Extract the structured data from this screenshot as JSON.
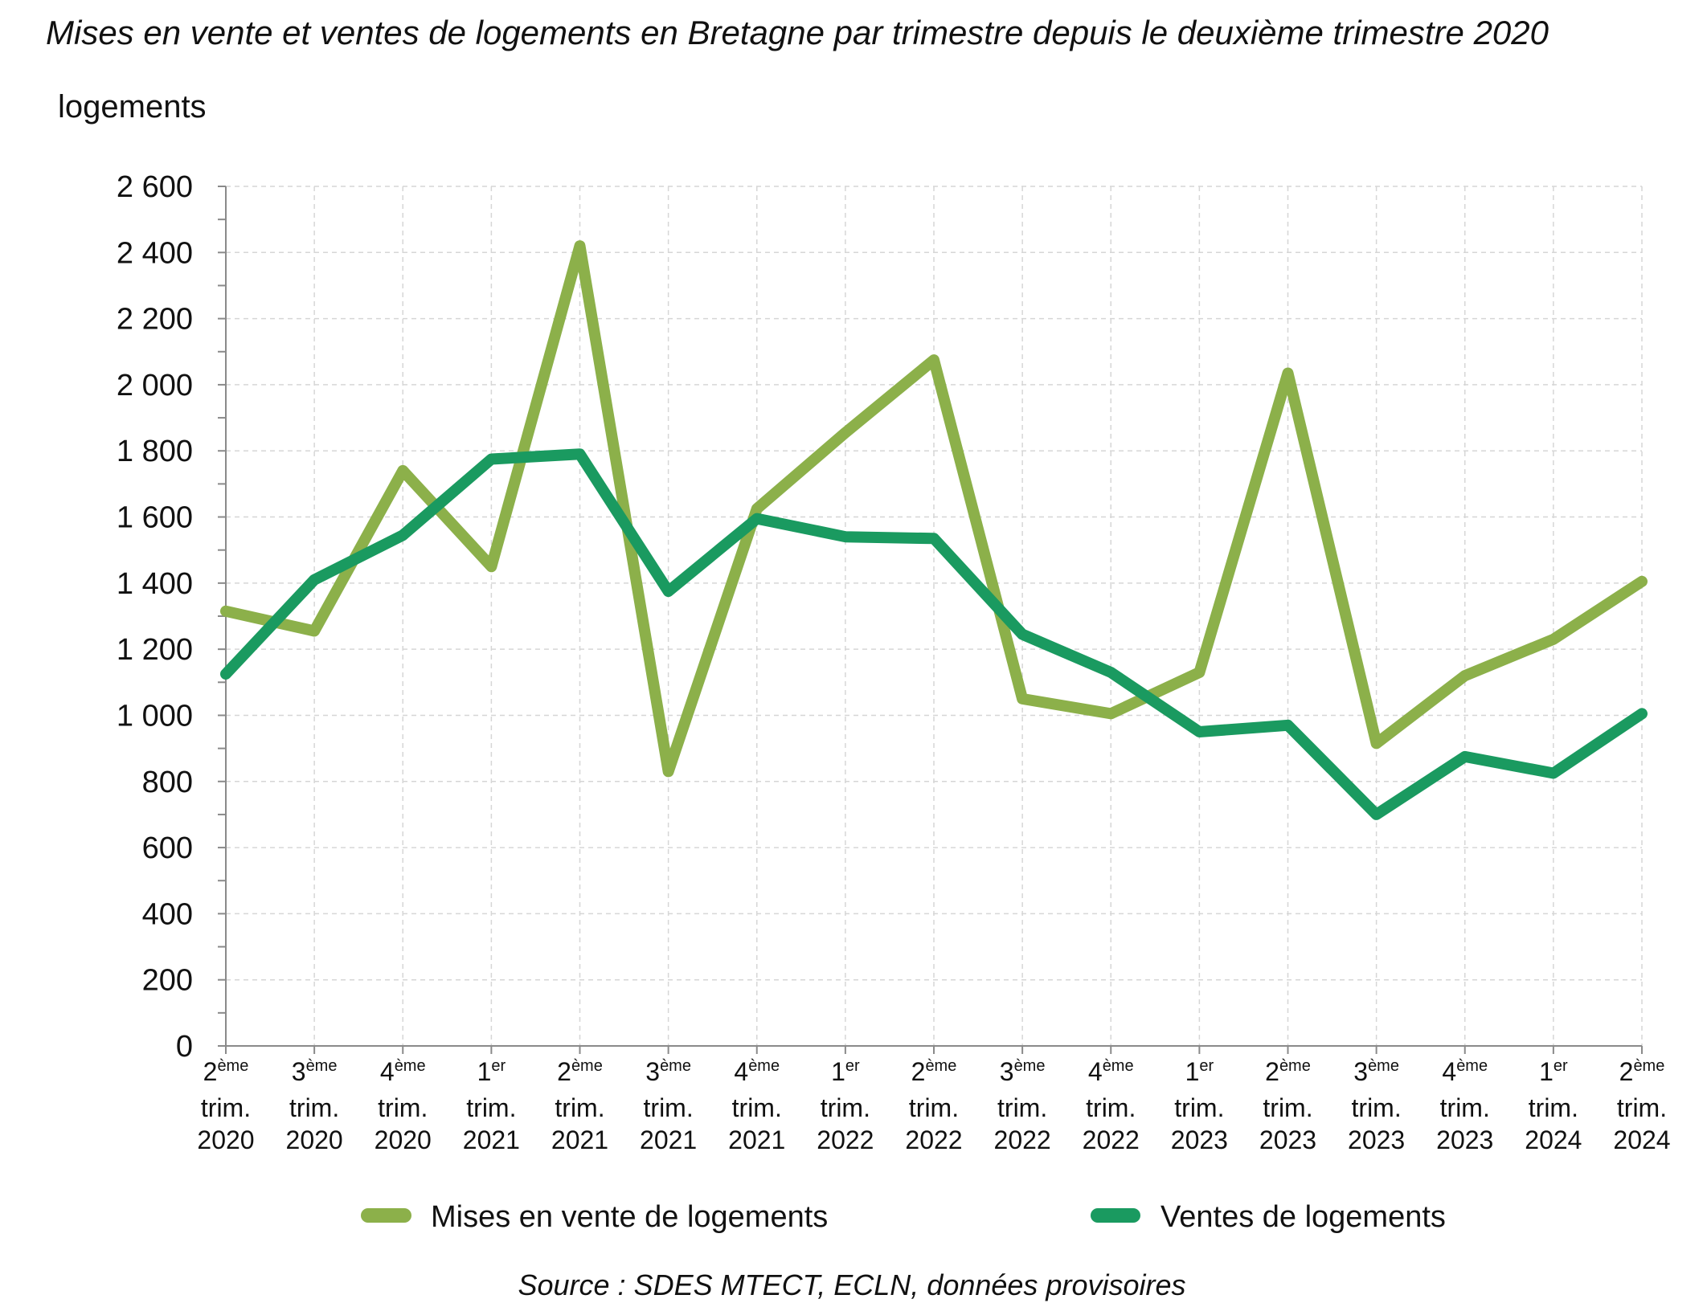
{
  "chart_data": {
    "type": "line",
    "title": "Mises en vente et ventes de logements en Bretagne par trimestre depuis le deuxième trimestre 2020",
    "ylabel": "logements",
    "ylim": [
      0,
      2600
    ],
    "yticks": [
      0,
      200,
      400,
      600,
      800,
      1000,
      1200,
      1400,
      1600,
      1800,
      2000,
      2200,
      2400,
      2600
    ],
    "ytick_labels": [
      "0",
      "200",
      "400",
      "600",
      "800",
      "1 000",
      "1 200",
      "1 400",
      "1 600",
      "1 800",
      "2 000",
      "2 200",
      "2 400",
      "2 600"
    ],
    "grid": true,
    "legend_position": "bottom",
    "categories": [
      {
        "num": "2",
        "sup": "ème",
        "mid": "trim.",
        "year": "2020"
      },
      {
        "num": "3",
        "sup": "ème",
        "mid": "trim.",
        "year": "2020"
      },
      {
        "num": "4",
        "sup": "ème",
        "mid": "trim.",
        "year": "2020"
      },
      {
        "num": "1",
        "sup": "er",
        "mid": "trim.",
        "year": "2021"
      },
      {
        "num": "2",
        "sup": "ème",
        "mid": "trim.",
        "year": "2021"
      },
      {
        "num": "3",
        "sup": "ème",
        "mid": "trim.",
        "year": "2021"
      },
      {
        "num": "4",
        "sup": "ème",
        "mid": "trim.",
        "year": "2021"
      },
      {
        "num": "1",
        "sup": "er",
        "mid": "trim.",
        "year": "2022"
      },
      {
        "num": "2",
        "sup": "ème",
        "mid": "trim.",
        "year": "2022"
      },
      {
        "num": "3",
        "sup": "ème",
        "mid": "trim.",
        "year": "2022"
      },
      {
        "num": "4",
        "sup": "ème",
        "mid": "trim.",
        "year": "2022"
      },
      {
        "num": "1",
        "sup": "er",
        "mid": "trim.",
        "year": "2023"
      },
      {
        "num": "2",
        "sup": "ème",
        "mid": "trim.",
        "year": "2023"
      },
      {
        "num": "3",
        "sup": "ème",
        "mid": "trim.",
        "year": "2023"
      },
      {
        "num": "4",
        "sup": "ème",
        "mid": "trim.",
        "year": "2023"
      },
      {
        "num": "1",
        "sup": "er",
        "mid": "trim.",
        "year": "2024"
      },
      {
        "num": "2",
        "sup": "ème",
        "mid": "trim.",
        "year": "2024"
      }
    ],
    "series": [
      {
        "name": "Mises en vente de logements",
        "color": "#8cb04a",
        "values": [
          1315,
          1255,
          1740,
          1450,
          2420,
          830,
          1625,
          1855,
          2075,
          1050,
          1005,
          1130,
          2035,
          915,
          1120,
          1230,
          1405
        ]
      },
      {
        "name": "Ventes de logements",
        "color": "#1a9a60",
        "values": [
          1125,
          1410,
          1545,
          1775,
          1790,
          1375,
          1595,
          1540,
          1535,
          1245,
          1130,
          950,
          970,
          700,
          875,
          825,
          1005
        ]
      }
    ],
    "source": "Source : SDES MTECT, ECLN, données provisoires"
  }
}
